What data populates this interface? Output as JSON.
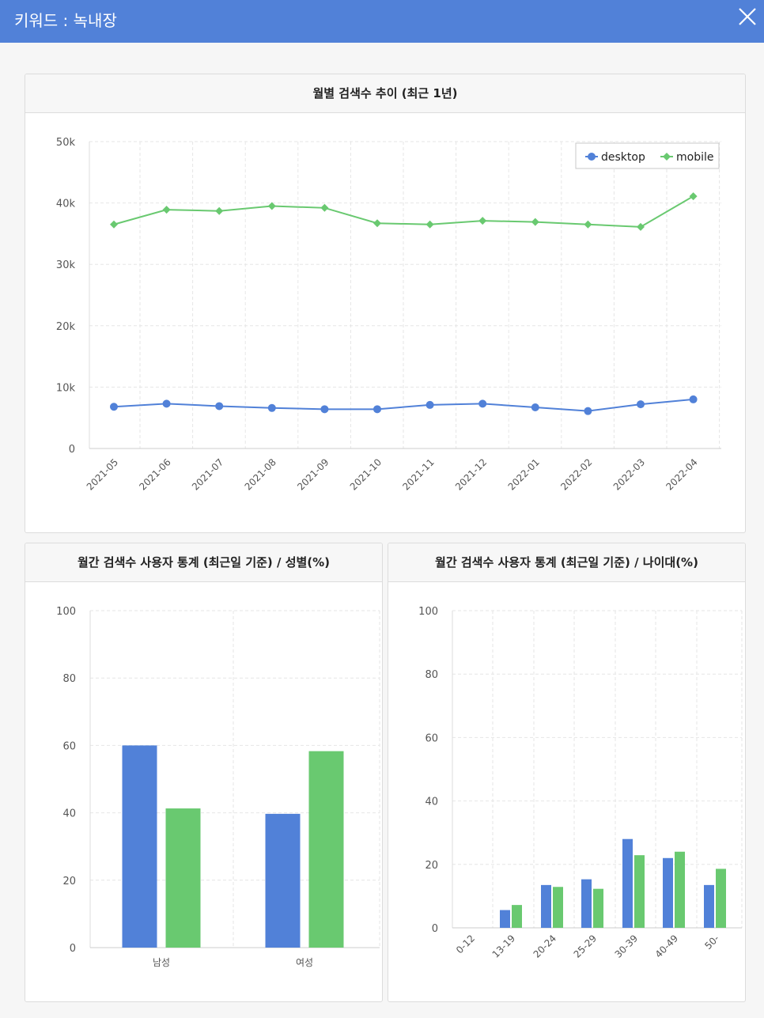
{
  "header": {
    "title": "키워드 : 녹내장"
  },
  "colors": {
    "desktop": "#5181d8",
    "mobile": "#69c970",
    "header": "#5181d8"
  },
  "icons": {
    "close": "close-icon"
  },
  "charts": {
    "monthly": {
      "title": "월별 검색수 추이 (최근 1년)"
    },
    "gender": {
      "title": "월간 검색수 사용자 통계 (최근일 기준) / 성별(%)"
    },
    "age": {
      "title": "월간 검색수 사용자 통계 (최근일 기준) / 나이대(%)"
    }
  },
  "chart_data": [
    {
      "type": "line",
      "title": "월별 검색수 추이 (최근 1년)",
      "categories": [
        "2021-05",
        "2021-06",
        "2021-07",
        "2021-08",
        "2021-09",
        "2021-10",
        "2021-11",
        "2021-12",
        "2022-01",
        "2022-02",
        "2022-03",
        "2022-04"
      ],
      "series": [
        {
          "name": "desktop",
          "values": [
            6800,
            7300,
            6900,
            6600,
            6400,
            6400,
            7100,
            7300,
            6700,
            6100,
            7200,
            8000
          ]
        },
        {
          "name": "mobile",
          "values": [
            36500,
            38900,
            38700,
            39500,
            39200,
            36700,
            36500,
            37100,
            36900,
            36500,
            36100,
            41100
          ]
        }
      ],
      "yticks": [
        "0",
        "10k",
        "20k",
        "30k",
        "40k",
        "50k"
      ],
      "ylim": [
        0,
        50000
      ],
      "grid": true,
      "legend": "top-right"
    },
    {
      "type": "bar",
      "title": "월간 검색수 사용자 통계 (최근일 기준) / 성별(%)",
      "categories": [
        "남성",
        "여성"
      ],
      "series": [
        {
          "values": [
            60,
            39.7
          ]
        },
        {
          "values": [
            41.3,
            58.3
          ]
        }
      ],
      "yticks": [
        "0",
        "20",
        "40",
        "60",
        "80",
        "100"
      ],
      "ylim": [
        0,
        100
      ],
      "grid": true
    },
    {
      "type": "bar",
      "title": "월간 검색수 사용자 통계 (최근일 기준) / 나이대(%)",
      "categories": [
        "0-12",
        "13-19",
        "20-24",
        "25-29",
        "30-39",
        "40-49",
        "50-"
      ],
      "series": [
        {
          "values": [
            0,
            5.6,
            13.5,
            15.3,
            28,
            22,
            13.5
          ]
        },
        {
          "values": [
            0,
            7.2,
            12.9,
            12.3,
            22.9,
            24,
            18.6
          ]
        }
      ],
      "yticks": [
        "0",
        "20",
        "40",
        "60",
        "80",
        "100"
      ],
      "ylim": [
        0,
        100
      ],
      "grid": true
    }
  ]
}
